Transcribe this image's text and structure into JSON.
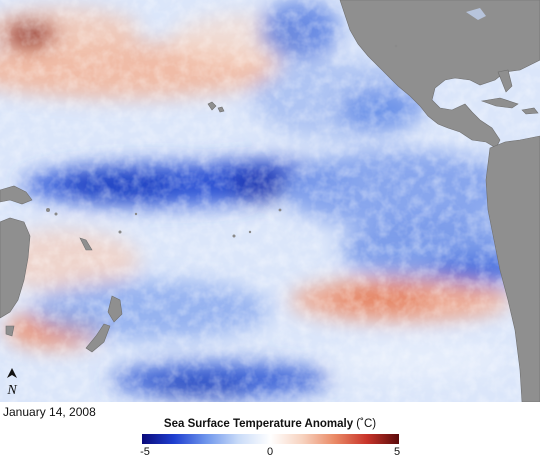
{
  "date": "January 14, 2008",
  "legend": {
    "title": "Sea Surface Temperature Anomaly",
    "unit": "(˚C)",
    "min_label": "-5",
    "mid_label": "0",
    "max_label": "5",
    "range": [
      -5,
      5
    ],
    "colors": [
      "#0a0a7a",
      "#1f3fd0",
      "#6f96ec",
      "#c9dbf8",
      "#ffffff",
      "#f7d2bf",
      "#ea8a66",
      "#c8342a",
      "#5a0a0a"
    ]
  },
  "north_arrow": {
    "icon": "north-arrow-icon",
    "letter": "N"
  },
  "colors": {
    "land": "#8f8f8f",
    "coast_outline": "#6e6e6e"
  }
}
